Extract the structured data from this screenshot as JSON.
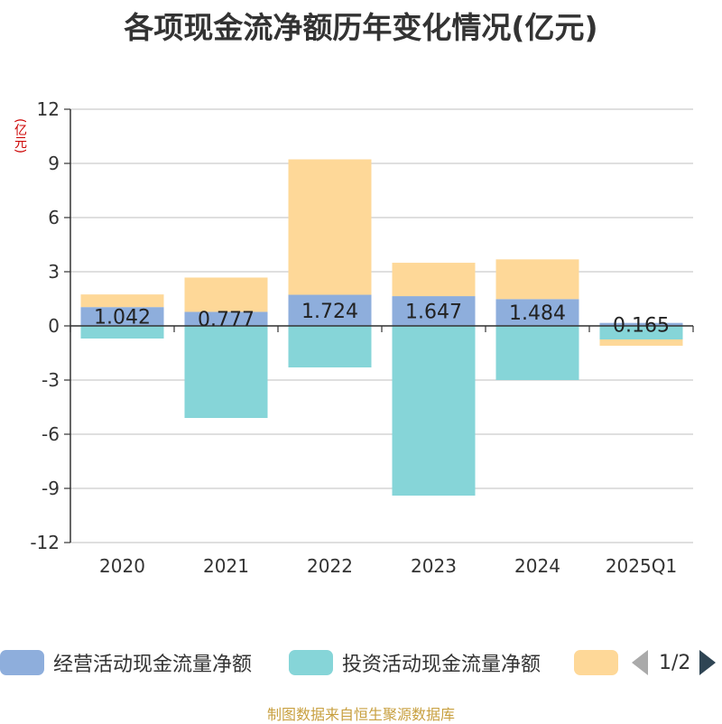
{
  "chart_data": {
    "type": "bar",
    "stacked": true,
    "title": "各项现金流净额历年变化情况(亿元)",
    "unit_label": "(亿元)",
    "categories": [
      "2020",
      "2021",
      "2022",
      "2023",
      "2024",
      "2025Q1"
    ],
    "ylim": [
      -12,
      12
    ],
    "yticks": [
      12,
      9,
      6,
      3,
      0,
      -3,
      -6,
      -9,
      -12
    ],
    "grid": true,
    "legend_position": "bottom",
    "series": [
      {
        "name": "经营活动现金流量净额",
        "color": "#8eaedc",
        "values": [
          1.042,
          0.777,
          1.724,
          1.647,
          1.484,
          0.165
        ],
        "data_labels": [
          "1.042",
          "0.777",
          "1.724",
          "1.647",
          "1.484",
          "0.165"
        ]
      },
      {
        "name": "投资活动现金流量净额",
        "color": "#86d5d8",
        "values": [
          -0.7,
          -5.1,
          -2.3,
          -9.4,
          -3.0,
          -0.75
        ]
      },
      {
        "name": "",
        "color": "#fed898",
        "values": [
          0.7,
          1.9,
          7.5,
          1.85,
          2.2,
          -0.35
        ]
      }
    ]
  },
  "legend": {
    "items": [
      {
        "label": "经营活动现金流量净额",
        "color": "#8eaedc"
      },
      {
        "label": "投资活动现金流量净额",
        "color": "#86d5d8"
      },
      {
        "label": "",
        "color": "#fed898"
      }
    ],
    "page_indicator": "1/2"
  },
  "footer": "制图数据来自恒生聚源数据库"
}
